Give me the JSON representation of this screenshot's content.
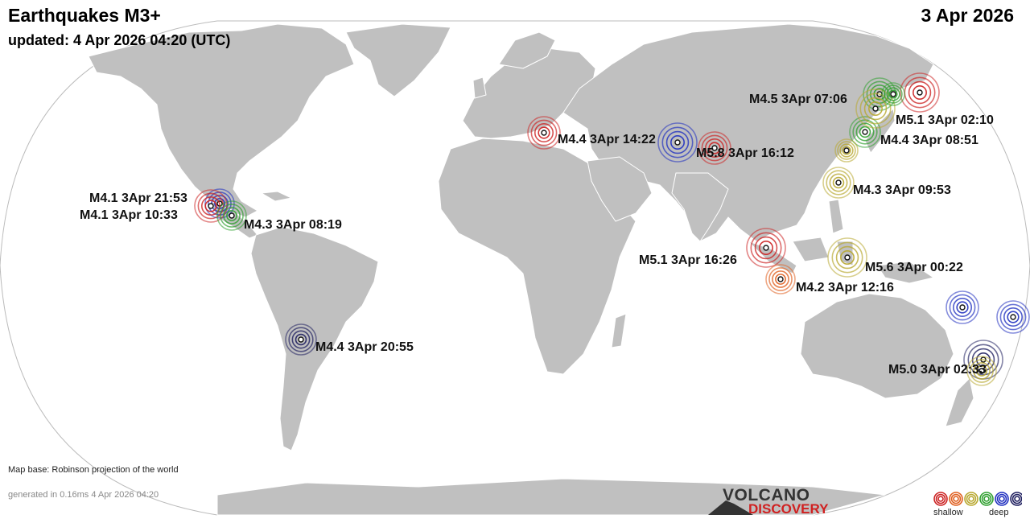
{
  "header": {
    "title": "Earthquakes M3+",
    "updated": "updated:  4 Apr 2026 04:20 (UTC)",
    "date": "3 Apr 2026"
  },
  "footer": {
    "map_base": "Map base: Robinson projection of the world",
    "generated": "generated in 0.16ms  4 Apr 2026 04:20"
  },
  "logo": {
    "line1": "VOLCANO",
    "line2": "DISCOVERY"
  },
  "legend": {
    "shallow": "shallow",
    "deep": "deep",
    "depth_colors": [
      "#cc2222",
      "#e06020",
      "#b8a830",
      "#30a030",
      "#2030c0",
      "#202060"
    ]
  },
  "colors": {
    "land": "#c0c0c0",
    "ocean": "#ffffff",
    "border": "#ffffff"
  },
  "quakes": [
    {
      "label": "M4.5  3Apr 07:06",
      "color": "#30a030"
    },
    {
      "label": "M5.1  3Apr 02:10",
      "color": "#cc2222"
    },
    {
      "label": "M4.4  3Apr 14:22",
      "color": "#cc2222"
    },
    {
      "label": "M5.8  3Apr 16:12",
      "color": "#cc2222"
    },
    {
      "label": "M4.4  3Apr 08:51",
      "color": "#30a030"
    },
    {
      "label": "M4.3  3Apr 09:53",
      "color": "#b8a830"
    },
    {
      "label": "M4.1  3Apr 21:53",
      "color": "#2030c0"
    },
    {
      "label": "M4.1  3Apr 10:33",
      "color": "#cc2222"
    },
    {
      "label": "M4.3  3Apr 08:19",
      "color": "#30a030"
    },
    {
      "label": "M5.1  3Apr 16:26",
      "color": "#cc2222"
    },
    {
      "label": "M5.6  3Apr 00:22",
      "color": "#b8a830"
    },
    {
      "label": "M4.2  3Apr 12:16",
      "color": "#e06020"
    },
    {
      "label": "M4.4  3Apr 20:55",
      "color": "#202060"
    },
    {
      "label": "M5.0  3Apr 02:33",
      "color": "#202060"
    },
    {
      "label": "",
      "color": "#2030c0"
    },
    {
      "label": "",
      "color": "#2030c0"
    },
    {
      "label": "",
      "color": "#2030c0"
    },
    {
      "label": "",
      "color": "#b8a830"
    },
    {
      "label": "",
      "color": "#30a030"
    },
    {
      "label": "",
      "color": "#b8a830"
    },
    {
      "label": "",
      "color": "#b8a830"
    }
  ]
}
